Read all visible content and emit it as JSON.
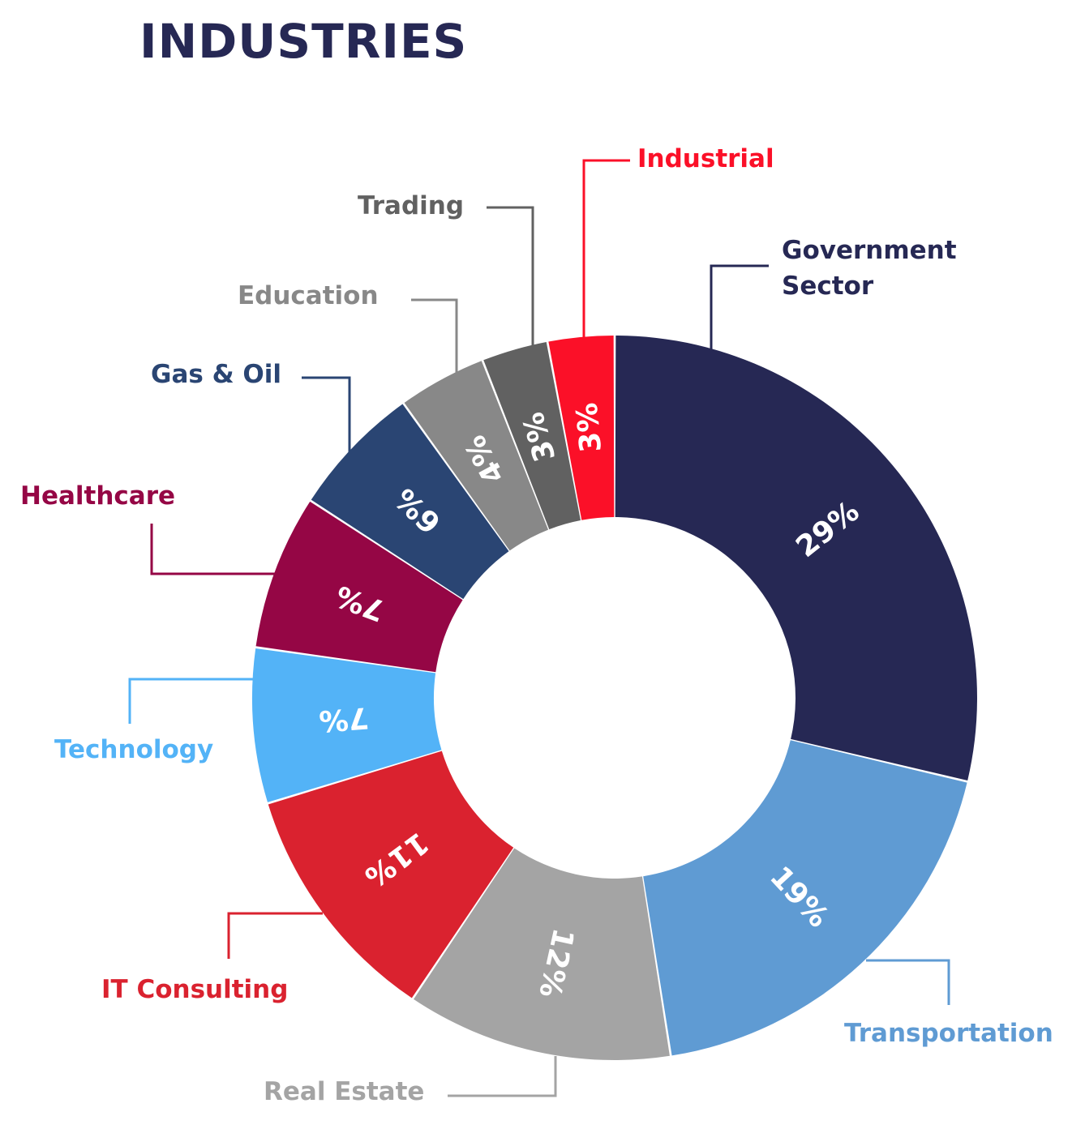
{
  "chart_data": {
    "type": "pie",
    "variant": "donut",
    "title": "INDUSTRIES",
    "slices": [
      {
        "label": "Government Sector",
        "label_lines": [
          "Government",
          "Sector"
        ],
        "value": 29,
        "value_label": "29%",
        "color": "#262854"
      },
      {
        "label": "Transportation",
        "label_lines": [
          "Transportation"
        ],
        "value": 19,
        "value_label": "19%",
        "color": "#5f9bd3"
      },
      {
        "label": "Real Estate",
        "label_lines": [
          "Real Estate"
        ],
        "value": 12,
        "value_label": "12%",
        "color": "#a4a4a4"
      },
      {
        "label": "IT Consulting",
        "label_lines": [
          "IT Consulting"
        ],
        "value": 11,
        "value_label": "11%",
        "color": "#da222f"
      },
      {
        "label": "Technology",
        "label_lines": [
          "Technology"
        ],
        "value": 7,
        "value_label": "7%",
        "color": "#53b3f7"
      },
      {
        "label": "Healthcare",
        "label_lines": [
          "Healthcare"
        ],
        "value": 7,
        "value_label": "7%",
        "color": "#950645"
      },
      {
        "label": "Gas & Oil",
        "label_lines": [
          "Gas & Oil"
        ],
        "value": 6,
        "value_label": "6%",
        "color": "#2a4573"
      },
      {
        "label": "Education",
        "label_lines": [
          "Education"
        ],
        "value": 4,
        "value_label": "4%",
        "color": "#888888"
      },
      {
        "label": "Trading",
        "label_lines": [
          "Trading"
        ],
        "value": 3,
        "value_label": "3%",
        "color": "#616161"
      },
      {
        "label": "Industrial",
        "label_lines": [
          "Industrial"
        ],
        "value": 3,
        "value_label": "3%",
        "color": "#fb1028"
      }
    ]
  }
}
